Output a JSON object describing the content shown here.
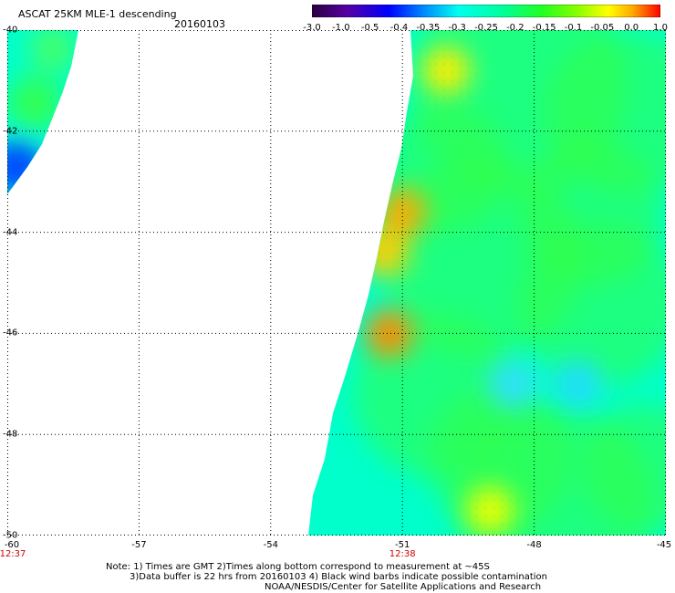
{
  "header": {
    "title": "ASCAT 25KM MLE-1 descending",
    "date": "20160103"
  },
  "colorbar": {
    "ticks": [
      "-3.0",
      "-1.0",
      "-0.5",
      "-0.4",
      "-0.35",
      "-0.3",
      "-0.25",
      "-0.2",
      "-0.15",
      "-0.1",
      "-0.05",
      "0.0",
      "1.0"
    ],
    "colors": [
      "#2a0040",
      "#5500a0",
      "#0000ff",
      "#0088ff",
      "#00ccff",
      "#00ffee",
      "#00ff99",
      "#22ff22",
      "#88ff00",
      "#ffff00",
      "#ffaa00",
      "#ff4400",
      "#ff0000"
    ]
  },
  "map": {
    "x_axis": {
      "tick_values": [
        -60,
        -57,
        -54,
        -51,
        -48,
        -45
      ],
      "tick_labels": [
        "-60",
        "-57",
        "-54",
        "-51",
        "-48",
        "-45"
      ],
      "range": [
        -60,
        -45
      ]
    },
    "y_axis": {
      "tick_values": [
        -40,
        -42,
        -44,
        -46,
        -48,
        -50
      ],
      "tick_labels": [
        "-40",
        "-42",
        "-44",
        "-46",
        "-48",
        "-50"
      ],
      "range": [
        -50,
        -40
      ]
    },
    "grid": "dotted",
    "swaths": [
      {
        "name": "west-swath",
        "color": "#00ffcc"
      },
      {
        "name": "east-swath",
        "color": "#00ffcc"
      }
    ],
    "hotspots": [
      {
        "lon": -51.3,
        "lat": -46.0,
        "color": "#ff8c00"
      },
      {
        "lon": -51.0,
        "lat": -43.6,
        "color": "#ffaa00"
      },
      {
        "lon": -51.4,
        "lat": -44.4,
        "color": "#ffd000"
      },
      {
        "lon": -50.0,
        "lat": -40.8,
        "color": "#ffee00"
      },
      {
        "lon": -49.0,
        "lat": -49.5,
        "color": "#eeff00"
      },
      {
        "lon": -47.0,
        "lat": -47.0,
        "color": "#22ddff"
      },
      {
        "lon": -48.5,
        "lat": -47.0,
        "color": "#33e0ff"
      },
      {
        "lon": -59.5,
        "lat": -42.5,
        "color": "#0033ff"
      }
    ]
  },
  "times": [
    {
      "label": "12:37",
      "lon": -60
    },
    {
      "label": "12:38",
      "lon": -51
    }
  ],
  "notes": {
    "line1": "Note: 1) Times are GMT 2)Times along bottom correspond to measurement at ~45S",
    "line2": "3)Data buffer is 22 hrs from 20160103 4) Black wind barbs indicate possible contamination",
    "line3": "NOAA/NESDIS/Center for Satellite Applications and Research"
  }
}
